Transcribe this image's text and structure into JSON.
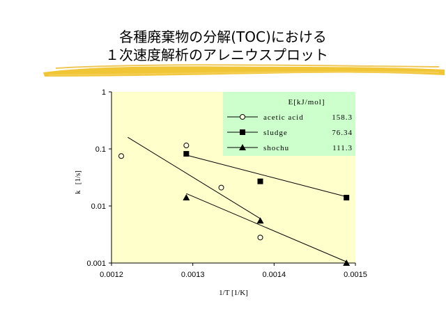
{
  "slide": {
    "title_line1": "各種廃棄物の分解(TOC)における",
    "title_line2": "１次速度解析のアレニウスプロット"
  },
  "chart_data": {
    "type": "scatter",
    "title": "各種廃棄物の分解(TOC)における１次速度解析のアレニウスプロット",
    "xlabel": "1/T  [1/K]",
    "ylabel": "k   [1/s]",
    "xlim": [
      0.0012,
      0.0015
    ],
    "ylim": [
      0.001,
      1
    ],
    "yscale": "log",
    "x_tick_labels": [
      "0.0012",
      "0.0013",
      "0.0014",
      "0.0015"
    ],
    "x_ticks": [
      0.0012,
      0.0013,
      0.0014,
      0.0015
    ],
    "y_tick_labels": [
      "0.001",
      "0.01",
      "0.1",
      "1"
    ],
    "y_ticks": [
      0.001,
      0.01,
      0.1,
      1
    ],
    "legend": {
      "header": "E[kJ/mol]",
      "placement": "top-right"
    },
    "series": [
      {
        "name": "acetic acid",
        "E": "158.3",
        "marker": "circle-open",
        "points": [
          [
            0.001212,
            0.075
          ],
          [
            0.001292,
            0.115
          ],
          [
            0.001335,
            0.021
          ],
          [
            0.001383,
            0.0028
          ]
        ],
        "fit": [
          [
            0.00122,
            0.16
          ],
          [
            0.001383,
            0.006
          ]
        ]
      },
      {
        "name": "sludge",
        "E": "76.34",
        "marker": "square-filled",
        "points": [
          [
            0.001292,
            0.082
          ],
          [
            0.001383,
            0.027
          ],
          [
            0.001489,
            0.014
          ]
        ],
        "fit": [
          [
            0.001292,
            0.078
          ],
          [
            0.001489,
            0.0145
          ]
        ]
      },
      {
        "name": "shochu",
        "E": "111.3",
        "marker": "triangle-filled",
        "points": [
          [
            0.001292,
            0.014
          ],
          [
            0.001383,
            0.0055
          ],
          [
            0.001489,
            0.001
          ]
        ],
        "fit": [
          [
            0.001292,
            0.0165
          ],
          [
            0.001489,
            0.00105
          ]
        ]
      }
    ],
    "colors": {
      "plot_bg": "#ffffcc",
      "legend_bg": "#ccffcc",
      "highlight": "#f0c020"
    }
  }
}
